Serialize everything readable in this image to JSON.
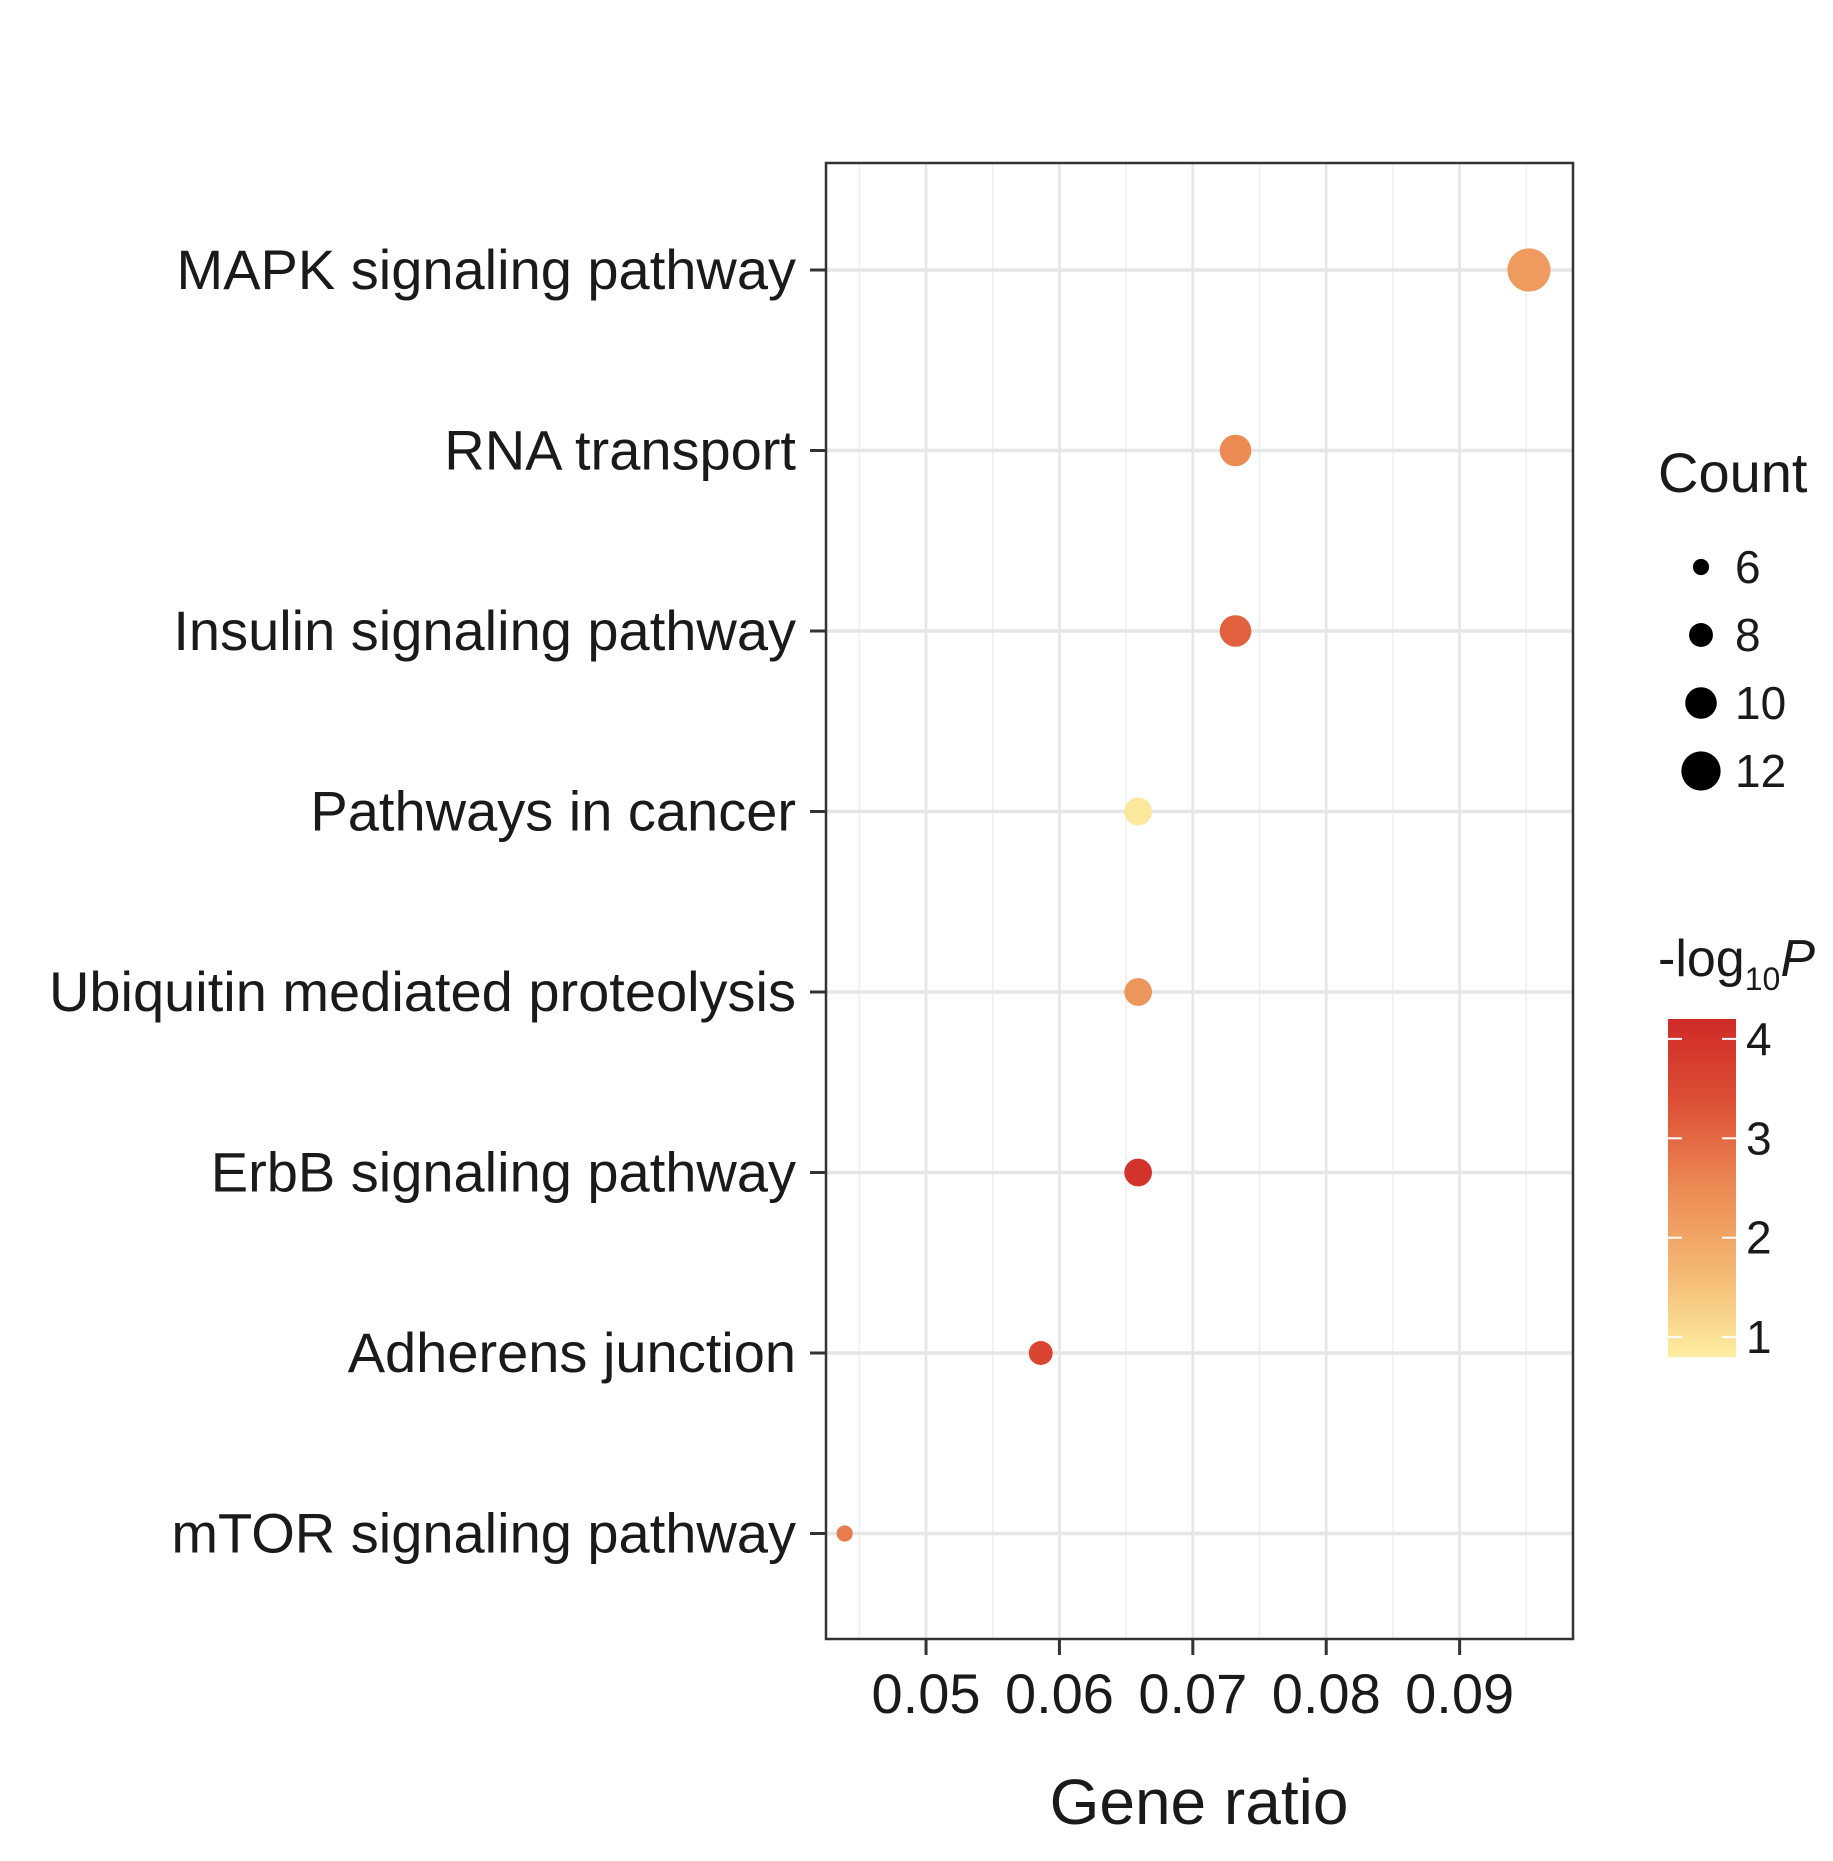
{
  "chart_data": {
    "type": "scatter",
    "title": "",
    "xlabel": "Gene ratio",
    "ylabel": "",
    "xlim": [
      0.0425,
      0.0985
    ],
    "x_ticks": [
      0.05,
      0.06,
      0.07,
      0.08,
      0.09
    ],
    "x_tick_labels": [
      "0.05",
      "0.06",
      "0.07",
      "0.08",
      "0.09"
    ],
    "grid": true,
    "categories": [
      "MAPK signaling pathway",
      "RNA transport",
      "Insulin signaling pathway",
      "Pathways in cancer",
      "Ubiquitin mediated proteolysis",
      "ErbB signaling pathway",
      "Adherens junction",
      "mTOR signaling pathway"
    ],
    "points": [
      {
        "pathway": "MAPK signaling pathway",
        "gene_ratio": 0.0952,
        "count": 13,
        "neg_log10_p": 2.2
      },
      {
        "pathway": "RNA transport",
        "gene_ratio": 0.0732,
        "count": 10,
        "neg_log10_p": 2.5
      },
      {
        "pathway": "Insulin signaling pathway",
        "gene_ratio": 0.0732,
        "count": 10,
        "neg_log10_p": 3.1
      },
      {
        "pathway": "Pathways in cancer",
        "gene_ratio": 0.0659,
        "count": 9,
        "neg_log10_p": 0.9
      },
      {
        "pathway": "Ubiquitin mediated proteolysis",
        "gene_ratio": 0.0659,
        "count": 9,
        "neg_log10_p": 2.3
      },
      {
        "pathway": "ErbB signaling pathway",
        "gene_ratio": 0.0659,
        "count": 9,
        "neg_log10_p": 4.0
      },
      {
        "pathway": "Adherens junction",
        "gene_ratio": 0.0586,
        "count": 8,
        "neg_log10_p": 3.6
      },
      {
        "pathway": "mTOR signaling pathway",
        "gene_ratio": 0.0439,
        "count": 6,
        "neg_log10_p": 2.7
      }
    ],
    "size_legend": {
      "title": "Count",
      "values": [
        6,
        8,
        10,
        12
      ],
      "labels": [
        "6",
        "8",
        "10",
        "12"
      ],
      "placement": "right"
    },
    "color_legend": {
      "title_main": "-log",
      "title_sub": "10",
      "title_var": "P",
      "domain": [
        0.8,
        4.2
      ],
      "ticks": [
        1,
        2,
        3,
        4
      ],
      "tick_labels": [
        "1",
        "2",
        "3",
        "4"
      ],
      "colors": [
        "#fdeea0",
        "#f4b873",
        "#ec8a54",
        "#dd5035",
        "#cf2a27"
      ],
      "placement": "right"
    }
  }
}
